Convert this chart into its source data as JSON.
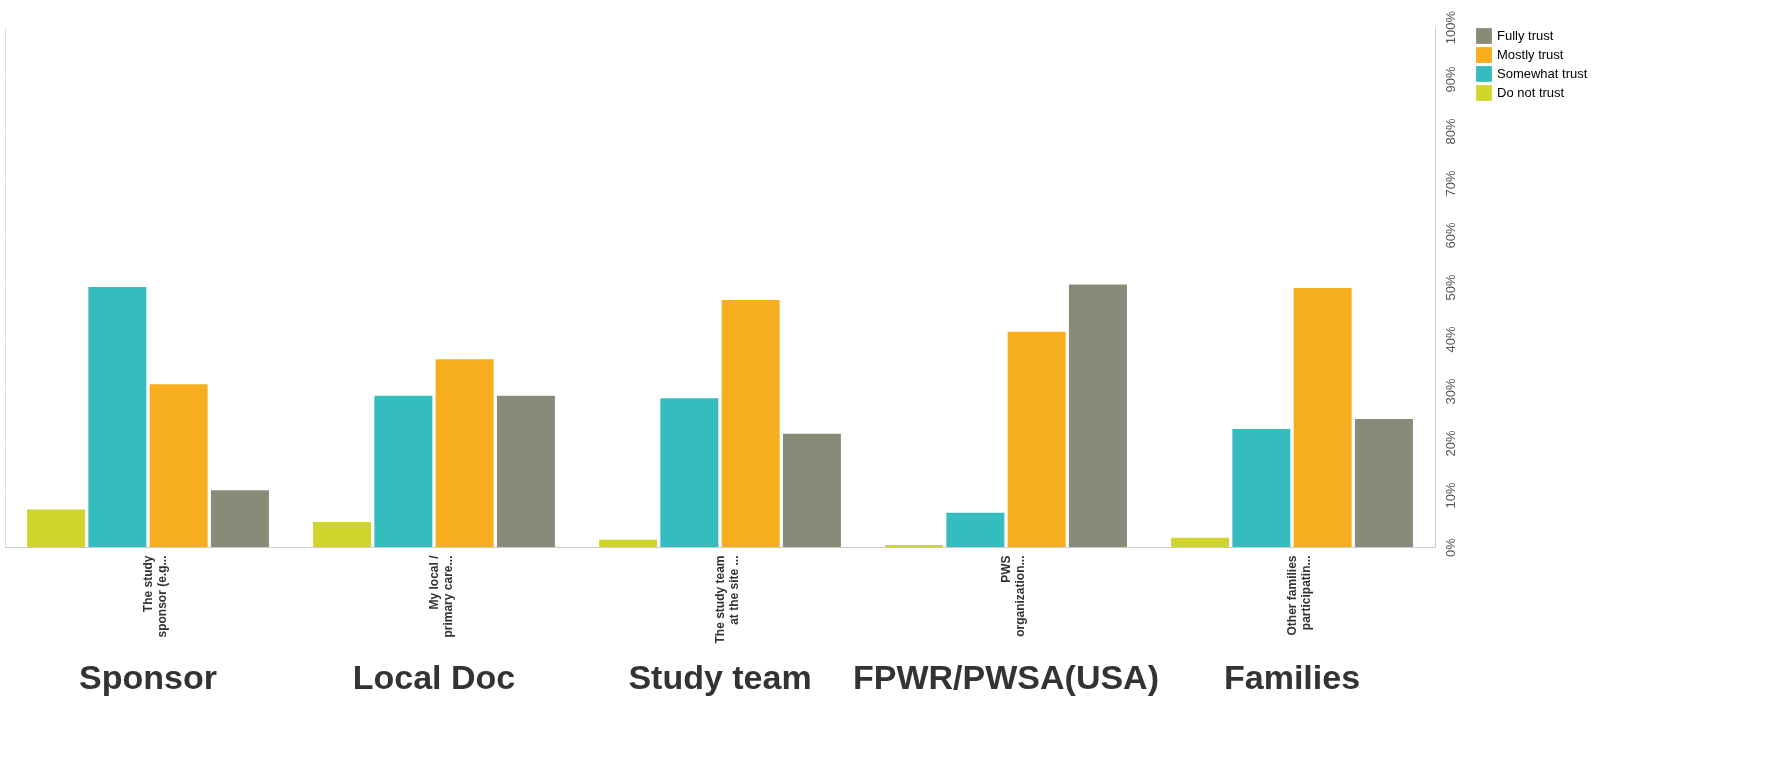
{
  "chart_data": {
    "type": "bar",
    "categories": [
      "The study\nsponsor (e.g...",
      "My local /\nprimary care...",
      "The study team\nat the site ...",
      "PWS\norganization...",
      "Other families\nparticipatin..."
    ],
    "series": [
      {
        "name": "Do not trust",
        "color": "#cfd52a",
        "values": [
          7.2,
          4.8,
          1.4,
          0.4,
          1.8
        ]
      },
      {
        "name": "Somewhat trust",
        "color": "#34bcbf",
        "values": [
          50.0,
          29.1,
          28.6,
          6.6,
          22.7
        ]
      },
      {
        "name": "Mostly trust",
        "color": "#f6ae1f",
        "values": [
          31.3,
          36.1,
          47.5,
          41.4,
          49.8
        ]
      },
      {
        "name": "Fully trust",
        "color": "#8a8a79",
        "values": [
          10.9,
          29.1,
          21.8,
          50.5,
          24.6
        ]
      }
    ],
    "ylim": [
      0,
      100
    ],
    "yticks": [
      {
        "value": 0,
        "label": "0%"
      },
      {
        "value": 10,
        "label": "10%"
      },
      {
        "value": 20,
        "label": "20%"
      },
      {
        "value": 30,
        "label": "30%"
      },
      {
        "value": 40,
        "label": "40%"
      },
      {
        "value": 50,
        "label": "50%"
      },
      {
        "value": 60,
        "label": "60%"
      },
      {
        "value": 70,
        "label": "70%"
      },
      {
        "value": 80,
        "label": "80%"
      },
      {
        "value": 90,
        "label": "90%"
      },
      {
        "value": 100,
        "label": "100%"
      }
    ],
    "grid": "y",
    "legend": "right",
    "annotations": [
      "Sponsor",
      "Local Doc",
      "Study team",
      "FPWR/PWSA(USA)",
      "Families"
    ]
  }
}
